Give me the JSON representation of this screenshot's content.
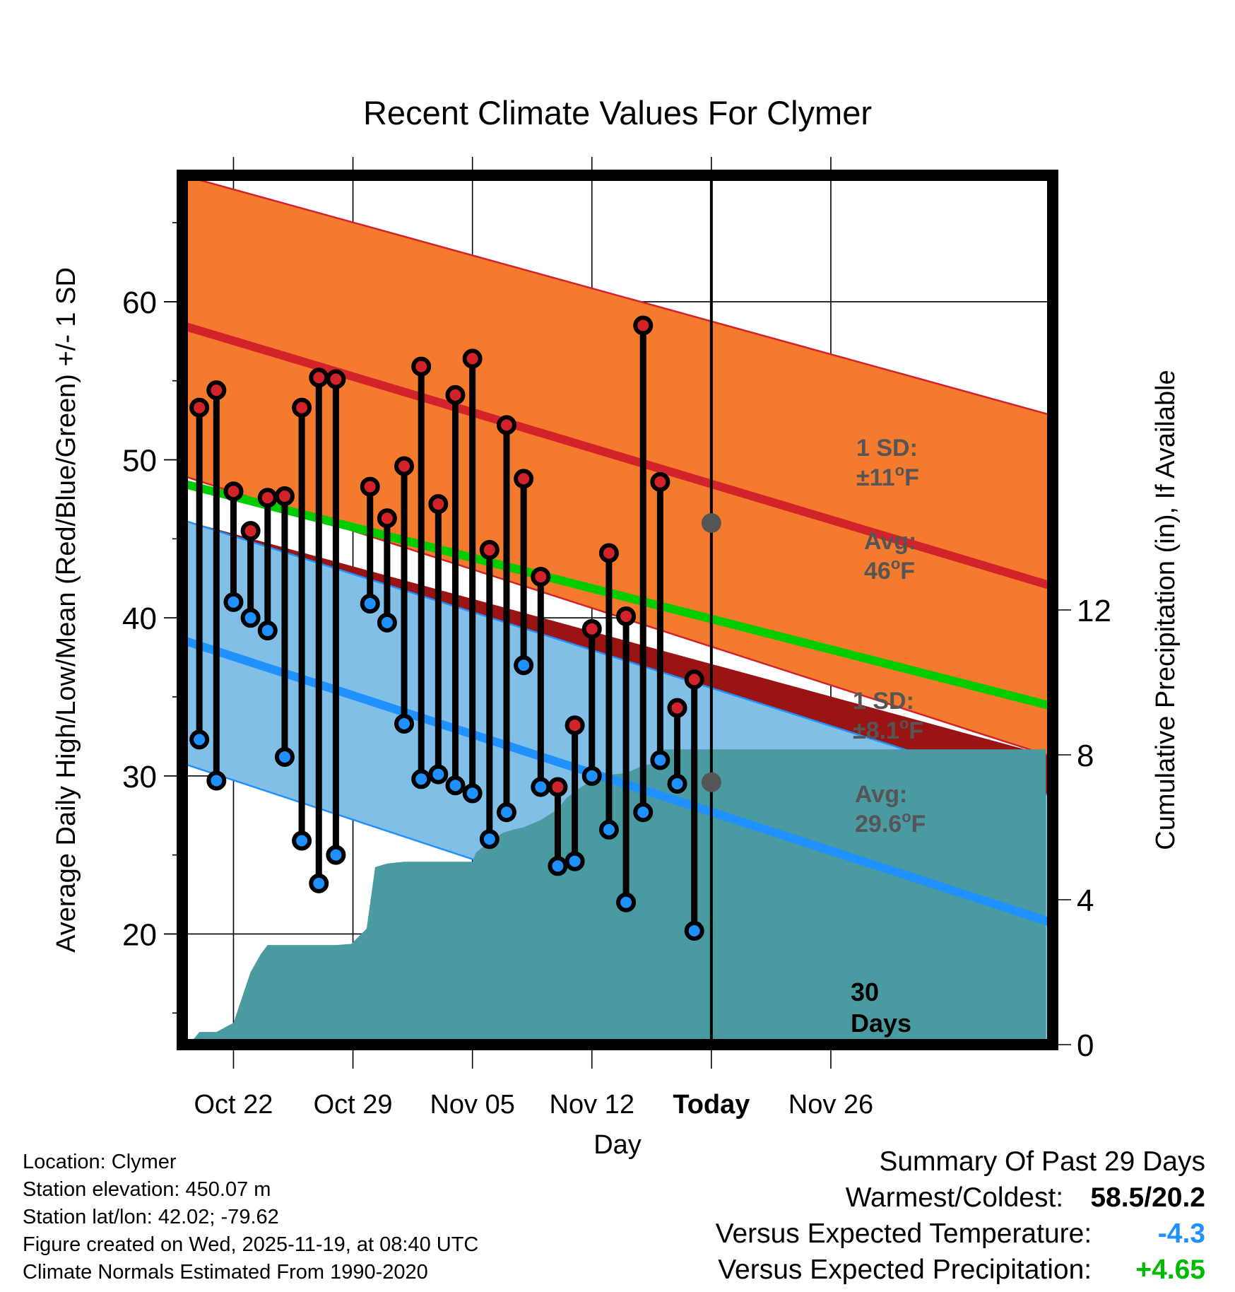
{
  "chart_data": {
    "type": "line",
    "title": "Recent Climate Values For Clymer",
    "xlabel": "Day",
    "ylabel_left": "Average Daily High/Low/Mean (Red/Blue/Green) +/- 1 SD",
    "ylabel_right": "Cumulative Precipitation (in), If Available",
    "x_range": [
      -3,
      48
    ],
    "ylim_left": [
      13,
      68
    ],
    "ylim_right": [
      0,
      24
    ],
    "x_ticks": [
      {
        "day": 0,
        "label": "Oct 22"
      },
      {
        "day": 7,
        "label": "Oct 29"
      },
      {
        "day": 14,
        "label": "Nov 05"
      },
      {
        "day": 21,
        "label": "Nov 12"
      },
      {
        "day": 28,
        "label": "Today"
      },
      {
        "day": 35,
        "label": "Nov 26"
      }
    ],
    "y_ticks_left": [
      "20",
      "30",
      "40",
      "50",
      "60"
    ],
    "y_ticks_left_values": [
      20,
      30,
      40,
      50,
      60
    ],
    "y_ticks_right": [
      "0",
      "4",
      "8",
      "12"
    ],
    "y_ticks_right_values": [
      0,
      4,
      8,
      12
    ],
    "normals": {
      "x": [
        -3,
        48
      ],
      "high_avg": [
        58.5,
        42.0
      ],
      "high_upper": [
        68.0,
        52.8
      ],
      "low_avg": [
        38.6,
        20.7
      ],
      "low_upper": [
        46.2,
        28.7
      ],
      "low_lower": [
        30.8,
        12.6
      ],
      "mean_avg": [
        48.5,
        34.4
      ]
    },
    "observations": {
      "day": [
        -2,
        -1,
        0,
        1,
        2,
        3,
        4,
        5,
        6,
        8,
        9,
        10,
        11,
        12,
        13,
        14,
        15,
        16,
        17,
        18,
        19,
        20,
        21,
        22,
        23,
        24,
        25,
        26,
        27
      ],
      "high": [
        53.3,
        54.4,
        48.0,
        45.5,
        47.6,
        47.7,
        53.3,
        55.2,
        55.1,
        48.3,
        46.3,
        49.6,
        55.9,
        47.2,
        54.1,
        56.4,
        44.3,
        52.2,
        48.8,
        42.6,
        29.3,
        33.2,
        39.3,
        44.1,
        40.1,
        58.5,
        48.6,
        34.3,
        36.1
      ],
      "low": [
        32.3,
        29.7,
        41.0,
        40.0,
        39.2,
        31.2,
        25.9,
        23.2,
        25.0,
        40.9,
        39.7,
        33.3,
        29.8,
        30.1,
        29.4,
        28.9,
        26.0,
        27.7,
        37.0,
        29.3,
        24.3,
        24.6,
        30.0,
        26.6,
        22.0,
        27.7,
        31.0,
        29.5,
        20.2
      ],
      "high_marker_colors": [
        "red",
        "red",
        "red",
        "red",
        "red",
        "red",
        "red",
        "red",
        "red",
        "red",
        "red",
        "red",
        "red",
        "red",
        "red",
        "red",
        "red",
        "red",
        "red",
        "red",
        "red",
        "red",
        "red",
        "red",
        "red",
        "red",
        "red",
        "red",
        "red"
      ],
      "low_marker_colors": [
        "blue",
        "blue",
        "blue",
        "blue",
        "blue",
        "blue",
        "blue",
        "blue",
        "blue",
        "blue",
        "blue",
        "blue",
        "blue",
        "blue",
        "blue",
        "blue",
        "blue",
        "blue",
        "blue",
        "blue",
        "blue",
        "blue",
        "blue",
        "blue",
        "blue",
        "blue",
        "blue",
        "blue",
        "blue"
      ]
    },
    "precipitation": {
      "day": [
        -2.6,
        -2,
        -1,
        -0.2,
        0,
        1,
        1.6,
        2,
        4,
        6,
        6.9,
        7.8,
        8.3,
        9,
        10,
        11,
        12,
        13,
        14,
        14.2,
        15,
        15.8,
        16.5,
        17,
        18,
        19,
        19.5,
        20,
        21,
        21.3,
        22,
        23,
        24,
        24.5,
        25,
        25.2,
        26,
        27,
        28,
        47.6
      ],
      "cumulative": [
        0.0,
        0.35,
        0.35,
        0.55,
        0.6,
        2.0,
        2.5,
        2.75,
        2.75,
        2.75,
        2.78,
        3.2,
        4.9,
        5.0,
        5.05,
        5.05,
        5.05,
        5.05,
        5.05,
        5.3,
        5.6,
        5.85,
        5.95,
        6.0,
        6.2,
        6.5,
        6.8,
        7.0,
        7.3,
        7.45,
        7.45,
        7.5,
        7.7,
        7.75,
        8.1,
        8.15,
        8.15,
        8.15,
        8.15,
        8.15
      ]
    },
    "today_day": 28,
    "today_markers": {
      "high_avg": 46.0,
      "low_avg": 29.6
    },
    "annotations": {
      "high_sd_label": "1 SD:",
      "high_sd_value": "±11°F",
      "high_avg_label": "Avg:",
      "high_avg_value": "46°F",
      "low_sd_label": "1 SD:",
      "low_sd_value": "±8.1°F",
      "low_avg_label": "Avg:",
      "low_avg_value": "29.6°F",
      "days_count": "30",
      "days_word": "Days"
    },
    "colors": {
      "high_band": "#f47a2e",
      "high_line": "#d2232a",
      "low_band": "#82bfe6",
      "low_line": "#1e90ff",
      "band_overlap": "#9b1414",
      "mean_line": "#00cc00",
      "precip_fill": "#4a9aa2",
      "stick": "#000000",
      "high_marker": "#d2232a",
      "low_marker": "#1e90ff",
      "annotation_text": "#555555",
      "today_marker": "#555555"
    }
  },
  "info": {
    "location": "Location: Clymer",
    "elevation": "Station elevation: 450.07 m",
    "latlon": "Station lat/lon: 42.02; -79.62",
    "created": "Figure created on Wed, 2025-11-19, at 08:40 UTC",
    "normals": "Climate Normals Estimated From 1990-2020"
  },
  "summary": {
    "title": "Summary Of Past 29 Days",
    "warmest_coldest_label": "Warmest/Coldest:",
    "warmest_coldest_value": "58.5/20.2",
    "temp_label": "Versus Expected Temperature:",
    "temp_value": "-4.3",
    "temp_color": "#1e90ff",
    "precip_label": "Versus Expected Precipitation:",
    "precip_value": "+4.65",
    "precip_color": "#00bb00"
  }
}
